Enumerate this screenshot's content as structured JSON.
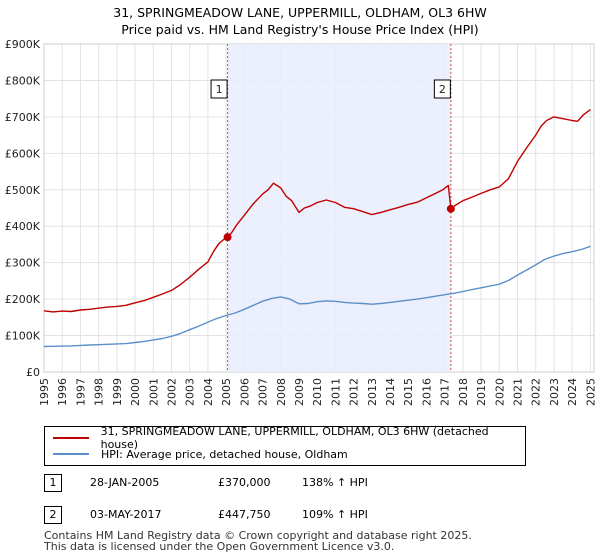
{
  "chart_data": {
    "type": "line",
    "title": "31, SPRINGMEADOW LANE, UPPERMILL, OLDHAM, OL3 6HW",
    "subtitle": "Price paid vs. HM Land Registry's House Price Index (HPI)",
    "xlabel": "",
    "ylabel": "",
    "xlim": [
      1995,
      2025.2
    ],
    "ylim": [
      0,
      900000
    ],
    "y_ticks": [
      {
        "value": 0,
        "label": "£0"
      },
      {
        "value": 100000,
        "label": "£100K"
      },
      {
        "value": 200000,
        "label": "£200K"
      },
      {
        "value": 300000,
        "label": "£300K"
      },
      {
        "value": 400000,
        "label": "£400K"
      },
      {
        "value": 500000,
        "label": "£500K"
      },
      {
        "value": 600000,
        "label": "£600K"
      },
      {
        "value": 700000,
        "label": "£700K"
      },
      {
        "value": 800000,
        "label": "£800K"
      },
      {
        "value": 900000,
        "label": "£900K"
      }
    ],
    "x_ticks": [
      "1995",
      "1996",
      "1997",
      "1998",
      "1999",
      "2000",
      "2001",
      "2002",
      "2003",
      "2004",
      "2005",
      "2006",
      "2007",
      "2008",
      "2009",
      "2010",
      "2011",
      "2012",
      "2013",
      "2014",
      "2015",
      "2016",
      "2017",
      "2018",
      "2019",
      "2020",
      "2021",
      "2022",
      "2023",
      "2024",
      "2025"
    ],
    "grid": true,
    "shaded_range": [
      2005.08,
      2017.34
    ],
    "series": [
      {
        "name": "31, SPRINGMEADOW LANE, UPPERMILL, OLDHAM, OL3 6HW (detached house)",
        "color": "#c00000",
        "x": [
          1995.0,
          1995.5,
          1996.0,
          1996.5,
          1997.0,
          1997.5,
          1998.0,
          1998.5,
          1999.0,
          1999.5,
          2000.0,
          2000.5,
          2001.0,
          2001.5,
          2002.0,
          2002.5,
          2003.0,
          2003.5,
          2004.0,
          2004.3,
          2004.6,
          2004.9,
          2005.08,
          2005.3,
          2005.6,
          2006.0,
          2006.5,
          2007.0,
          2007.3,
          2007.6,
          2008.0,
          2008.3,
          2008.6,
          2009.0,
          2009.3,
          2009.6,
          2010.0,
          2010.5,
          2011.0,
          2011.5,
          2012.0,
          2012.5,
          2013.0,
          2013.5,
          2014.0,
          2014.5,
          2015.0,
          2015.5,
          2016.0,
          2016.5,
          2016.9,
          2017.2,
          2017.34,
          2017.6,
          2018.0,
          2018.5,
          2019.0,
          2019.5,
          2020.0,
          2020.5,
          2021.0,
          2021.5,
          2022.0,
          2022.3,
          2022.6,
          2023.0,
          2023.5,
          2024.0,
          2024.3,
          2024.6,
          2025.0
        ],
        "values": [
          168000,
          165000,
          167000,
          166000,
          170000,
          172000,
          175000,
          178000,
          180000,
          183000,
          190000,
          196000,
          205000,
          214000,
          224000,
          240000,
          260000,
          282000,
          302000,
          330000,
          352000,
          365000,
          370000,
          382000,
          405000,
          430000,
          462000,
          488000,
          500000,
          518000,
          505000,
          482000,
          470000,
          438000,
          450000,
          455000,
          465000,
          472000,
          465000,
          452000,
          448000,
          440000,
          432000,
          438000,
          445000,
          452000,
          460000,
          466000,
          478000,
          490000,
          500000,
          512000,
          447750,
          458000,
          470000,
          480000,
          490000,
          500000,
          508000,
          530000,
          578000,
          615000,
          650000,
          675000,
          690000,
          700000,
          695000,
          690000,
          688000,
          705000,
          720000
        ]
      },
      {
        "name": "HPI: Average price, detached house, Oldham",
        "color": "#5b8fc9",
        "x": [
          1995.0,
          1995.5,
          1996.0,
          1996.5,
          1997.0,
          1997.5,
          1998.0,
          1998.5,
          1999.0,
          1999.5,
          2000.0,
          2000.5,
          2001.0,
          2001.5,
          2002.0,
          2002.5,
          2003.0,
          2003.5,
          2004.0,
          2004.5,
          2005.0,
          2005.5,
          2006.0,
          2006.5,
          2007.0,
          2007.5,
          2008.0,
          2008.5,
          2009.0,
          2009.5,
          2010.0,
          2010.5,
          2011.0,
          2011.5,
          2012.0,
          2012.5,
          2013.0,
          2013.5,
          2014.0,
          2014.5,
          2015.0,
          2015.5,
          2016.0,
          2016.5,
          2017.0,
          2017.5,
          2018.0,
          2018.5,
          2019.0,
          2019.5,
          2020.0,
          2020.5,
          2021.0,
          2021.5,
          2022.0,
          2022.5,
          2023.0,
          2023.5,
          2024.0,
          2024.5,
          2025.0
        ],
        "values": [
          70000,
          70500,
          71000,
          71500,
          73000,
          74000,
          75000,
          76000,
          77000,
          78000,
          81000,
          84000,
          88000,
          92000,
          98000,
          106000,
          116000,
          126000,
          137000,
          147000,
          155000,
          162000,
          172000,
          183000,
          194000,
          202000,
          206000,
          200000,
          187000,
          188000,
          193000,
          195000,
          194000,
          191000,
          189000,
          188000,
          186000,
          188000,
          191000,
          194000,
          197000,
          200000,
          204000,
          208000,
          212000,
          216000,
          221000,
          226000,
          231000,
          236000,
          241000,
          251000,
          266000,
          280000,
          294000,
          309000,
          318000,
          325000,
          330000,
          336000,
          345000
        ]
      }
    ],
    "annotations": [
      {
        "label": "1",
        "x": 2005.08,
        "value": 370000
      },
      {
        "label": "2",
        "x": 2017.34,
        "value": 447750
      }
    ]
  },
  "legend": {
    "series1": "31, SPRINGMEADOW LANE, UPPERMILL, OLDHAM, OL3 6HW (detached house)",
    "series2": "HPI: Average price, detached house, Oldham"
  },
  "transactions": [
    {
      "num": "1",
      "date": "28-JAN-2005",
      "price": "£370,000",
      "hpi": "138% ↑ HPI"
    },
    {
      "num": "2",
      "date": "03-MAY-2017",
      "price": "£447,750",
      "hpi": "109% ↑ HPI"
    }
  ],
  "footer": {
    "line1": "Contains HM Land Registry data © Crown copyright and database right 2025.",
    "line2": "This data is licensed under the Open Government Licence v3.0."
  }
}
